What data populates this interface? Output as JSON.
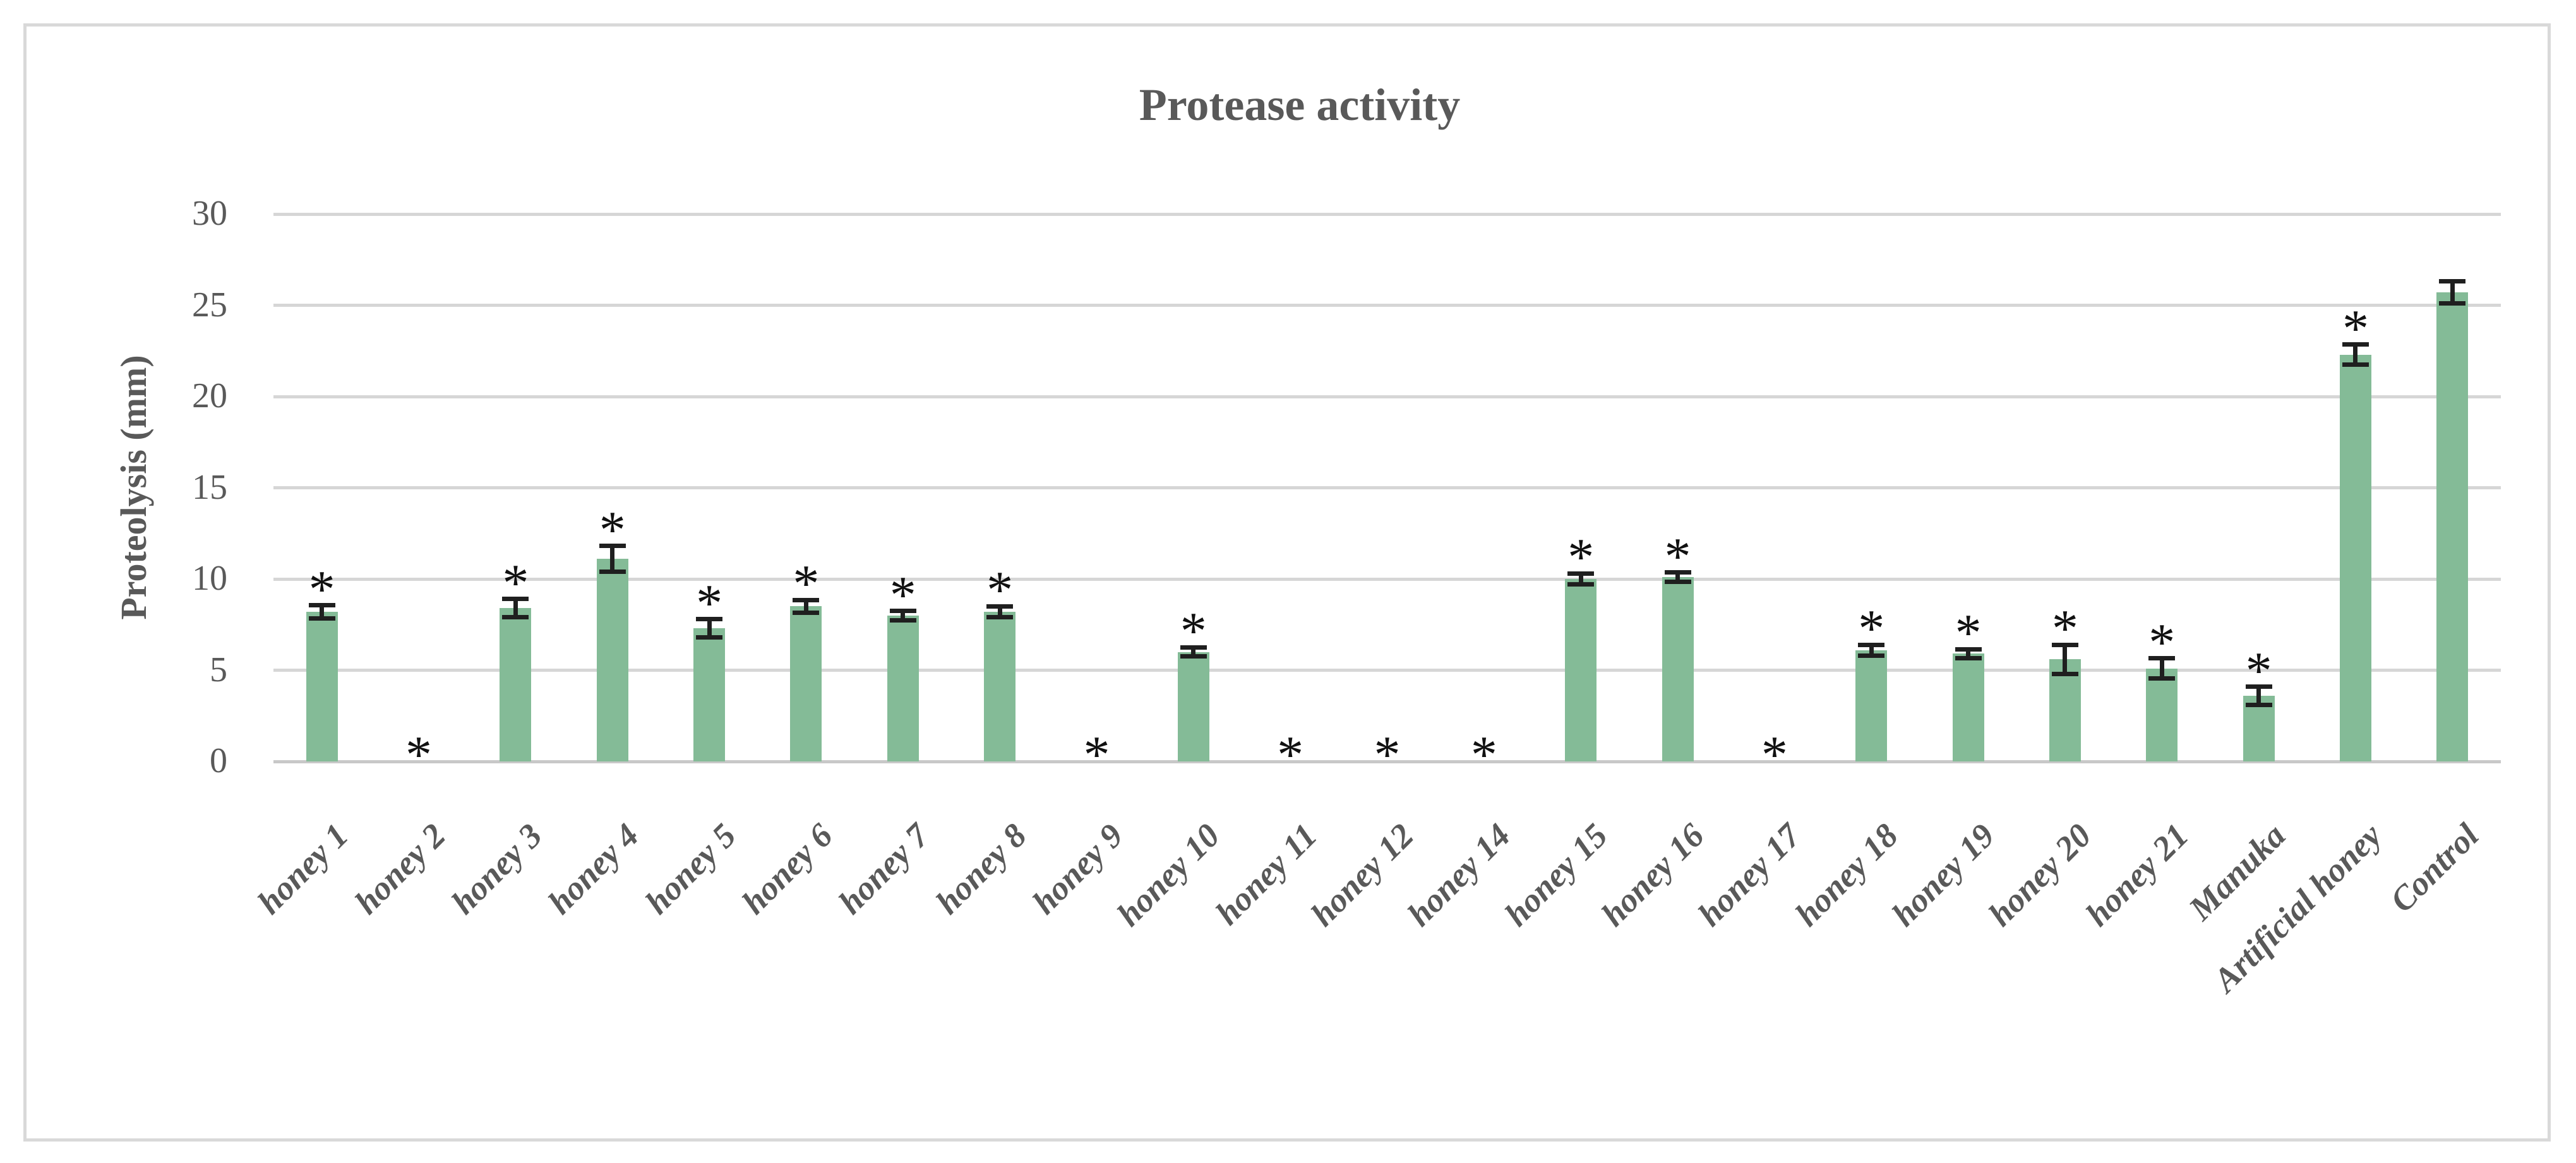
{
  "figure": {
    "background_color": "#FFFFFF",
    "border_color": "#D9D9D9",
    "text_color": "#595959"
  },
  "chart_data": {
    "type": "bar",
    "title": "Protease activity",
    "xlabel": "",
    "ylabel": "Proteolysis (mm)",
    "ylim": [
      0,
      30
    ],
    "yticks": [
      0,
      5,
      10,
      15,
      20,
      25,
      30
    ],
    "grid": true,
    "legend": false,
    "bar_color": "#84BB97",
    "error_bar_color": "#1F1F1F",
    "significance_marker": "*",
    "categories": [
      "honey 1",
      "honey 2",
      "honey 3",
      "honey 4",
      "honey 5",
      "honey 6",
      "honey 7",
      "honey 8",
      "honey 9",
      "honey 10",
      "honey 11",
      "honey 12",
      "honey 14",
      "honey 15",
      "honey 16",
      "honey 17",
      "honey 18",
      "honey 19",
      "honey 20",
      "honey 21",
      "Manuka",
      "Artificial honey",
      "Control"
    ],
    "series": [
      {
        "name": "Proteolysis (mm)",
        "values": [
          8.2,
          0,
          8.4,
          11.1,
          7.3,
          8.5,
          8.0,
          8.2,
          0,
          6.0,
          0,
          0,
          0,
          10.0,
          10.1,
          0,
          6.1,
          5.9,
          5.6,
          5.1,
          3.6,
          22.3,
          25.7
        ]
      }
    ],
    "error_bars": [
      0.35,
      0,
      0.5,
      0.7,
      0.5,
      0.35,
      0.25,
      0.3,
      0,
      0.25,
      0,
      0,
      0,
      0.3,
      0.25,
      0,
      0.3,
      0.25,
      0.8,
      0.55,
      0.5,
      0.55,
      0.6
    ],
    "significant": [
      true,
      true,
      true,
      true,
      true,
      true,
      true,
      true,
      true,
      true,
      true,
      true,
      true,
      true,
      true,
      true,
      true,
      true,
      true,
      true,
      true,
      true,
      false
    ]
  }
}
